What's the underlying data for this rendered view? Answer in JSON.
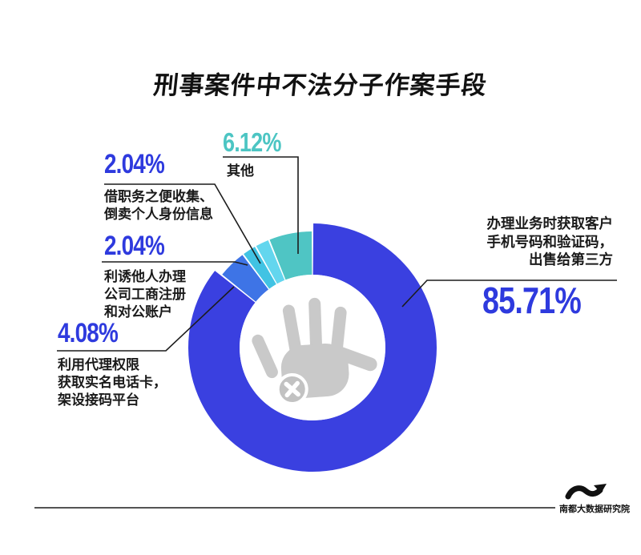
{
  "title": "刑事案件中不法分子作案手段",
  "chart_data": {
    "type": "pie",
    "donut": true,
    "title": "刑事案件中不法分子作案手段",
    "unit": "%",
    "start_angle": "12 o'clock, clockwise",
    "segments": [
      {
        "name": "办理业务时获取客户手机号码和验证码，出售给第三方",
        "value": 85.71,
        "color": "#3a40e0",
        "emphasis": true
      },
      {
        "name": "利用代理权限获取实名电话卡，架设接码平台",
        "value": 4.08,
        "color": "#3e74e6",
        "emphasis": false
      },
      {
        "name": "利诱他人办理公司工商注册和对公账户",
        "value": 2.04,
        "color": "#41c3e3",
        "emphasis": false
      },
      {
        "name": "借职务之便收集、倒卖个人身份信息",
        "value": 2.04,
        "color": "#63d6ee",
        "emphasis": false
      },
      {
        "name": "其他",
        "value": 6.12,
        "color": "#4fc5c4",
        "emphasis": false
      }
    ],
    "legend": "none",
    "center_icon": "blocked-hand"
  },
  "callouts": {
    "other": {
      "pct": "6.12%",
      "lines": [
        "其他"
      ]
    },
    "jiezhiwu": {
      "pct": "2.04%",
      "lines": [
        "借职务之便收集、",
        "倒卖个人身份信息"
      ]
    },
    "liyou": {
      "pct": "2.04%",
      "lines": [
        "利诱他人办理",
        "公司工商注册",
        "和对公账户"
      ]
    },
    "liyong": {
      "pct": "4.08%",
      "lines": [
        "利用代理权限",
        "获取实名电话卡，",
        "架设接码平台"
      ]
    },
    "main": {
      "pct": "85.71%",
      "lines": [
        "办理业务时获取客户",
        "手机号码和验证码，",
        "出售给第三方"
      ]
    }
  },
  "footer": {
    "brand": "南都大数据研究院"
  },
  "colors": {
    "percent_blue": "#2e3ade",
    "percent_teal": "#4cc5c3",
    "label_text": "#1a1a1a",
    "hand_gray": "#c9c9c9",
    "line_black": "#1c1c1c",
    "background": "#ffffff"
  }
}
